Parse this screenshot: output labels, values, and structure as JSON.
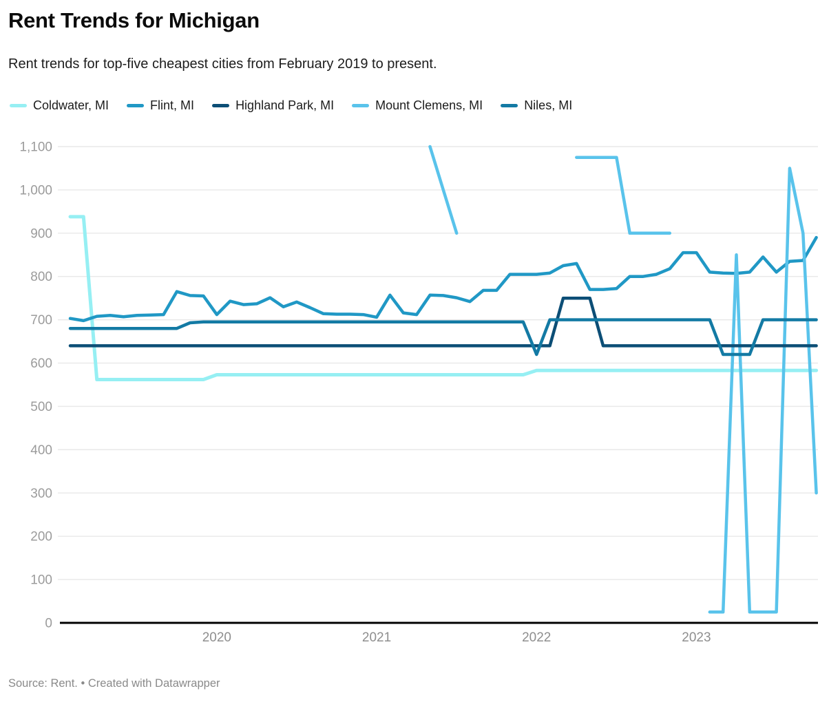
{
  "header": {
    "title": "Rent Trends for Michigan",
    "subtitle": "Rent trends for top-five cheapest cities from February 2019 to present."
  },
  "footer": {
    "text": "Source: Rent. • Created with Datawrapper"
  },
  "chart_data": {
    "type": "line",
    "title": "Rent Trends for Michigan",
    "subtitle": "Rent trends for top-five cheapest cities from February 2019 to present.",
    "x_unit": "month",
    "x_start": "2019-02",
    "x_end": "2023-10",
    "x_tick_labels": [
      "2020",
      "2021",
      "2022",
      "2023"
    ],
    "x_tick_month_index": [
      11,
      23,
      35,
      47
    ],
    "y_ticks": [
      "0",
      "100",
      "200",
      "300",
      "400",
      "500",
      "600",
      "700",
      "800",
      "900",
      "1,000",
      "1,100"
    ],
    "ylim": [
      0,
      1100
    ],
    "grid": "horizontal",
    "legend_position": "top",
    "axis_colors": {
      "gridline": "#e8e8e8",
      "baseline": "#000000",
      "tick_text": "#9b9b9b"
    },
    "series": [
      {
        "name": "Coldwater, MI",
        "color": "#96EFF3",
        "values": [
          938,
          938,
          562,
          562,
          562,
          562,
          562,
          562,
          562,
          562,
          562,
          573,
          573,
          573,
          573,
          573,
          573,
          573,
          573,
          573,
          573,
          573,
          573,
          573,
          573,
          573,
          573,
          573,
          573,
          573,
          573,
          573,
          573,
          573,
          573,
          583,
          583,
          583,
          583,
          583,
          583,
          583,
          583,
          583,
          583,
          583,
          583,
          583,
          583,
          583,
          583,
          583,
          583,
          583,
          583,
          583,
          583
        ]
      },
      {
        "name": "Flint, MI",
        "color": "#2098C5",
        "values": [
          703,
          698,
          708,
          710,
          707,
          710,
          711,
          712,
          765,
          756,
          755,
          712,
          743,
          735,
          737,
          751,
          730,
          741,
          728,
          714,
          713,
          713,
          712,
          706,
          757,
          716,
          712,
          757,
          756,
          751,
          742,
          768,
          768,
          805,
          805,
          805,
          808,
          825,
          830,
          770,
          770,
          772,
          800,
          800,
          805,
          818,
          855,
          855,
          810,
          808,
          807,
          810,
          845,
          810,
          835,
          837,
          890
        ]
      },
      {
        "name": "Highland Park, MI",
        "color": "#0C4E76",
        "values": [
          640,
          640,
          640,
          640,
          640,
          640,
          640,
          640,
          640,
          640,
          640,
          640,
          640,
          640,
          640,
          640,
          640,
          640,
          640,
          640,
          640,
          640,
          640,
          640,
          640,
          640,
          640,
          640,
          640,
          640,
          640,
          640,
          640,
          640,
          640,
          640,
          640,
          750,
          750,
          750,
          640,
          640,
          640,
          640,
          640,
          640,
          640,
          640,
          640,
          640,
          640,
          640,
          640,
          640,
          640,
          640,
          640
        ]
      },
      {
        "name": "Mount Clemens, MI",
        "color": "#59C3EB",
        "values": [
          null,
          null,
          null,
          null,
          null,
          null,
          null,
          null,
          null,
          null,
          null,
          null,
          null,
          null,
          null,
          null,
          null,
          null,
          null,
          null,
          null,
          null,
          null,
          null,
          null,
          null,
          null,
          1100,
          1000,
          900,
          null,
          null,
          null,
          null,
          null,
          null,
          null,
          null,
          1075,
          1075,
          1075,
          1075,
          900,
          900,
          900,
          900,
          null,
          null,
          25,
          25,
          850,
          25,
          25,
          25,
          1050,
          900,
          300
        ]
      },
      {
        "name": "Niles, MI",
        "color": "#137AA4",
        "values": [
          680,
          680,
          680,
          680,
          680,
          680,
          680,
          680,
          680,
          693,
          695,
          695,
          695,
          695,
          695,
          695,
          695,
          695,
          695,
          695,
          695,
          695,
          695,
          695,
          695,
          695,
          695,
          695,
          695,
          695,
          695,
          695,
          695,
          695,
          695,
          620,
          700,
          700,
          700,
          700,
          700,
          700,
          700,
          700,
          700,
          700,
          700,
          700,
          700,
          620,
          620,
          620,
          700,
          700,
          700,
          700,
          700
        ]
      }
    ]
  }
}
